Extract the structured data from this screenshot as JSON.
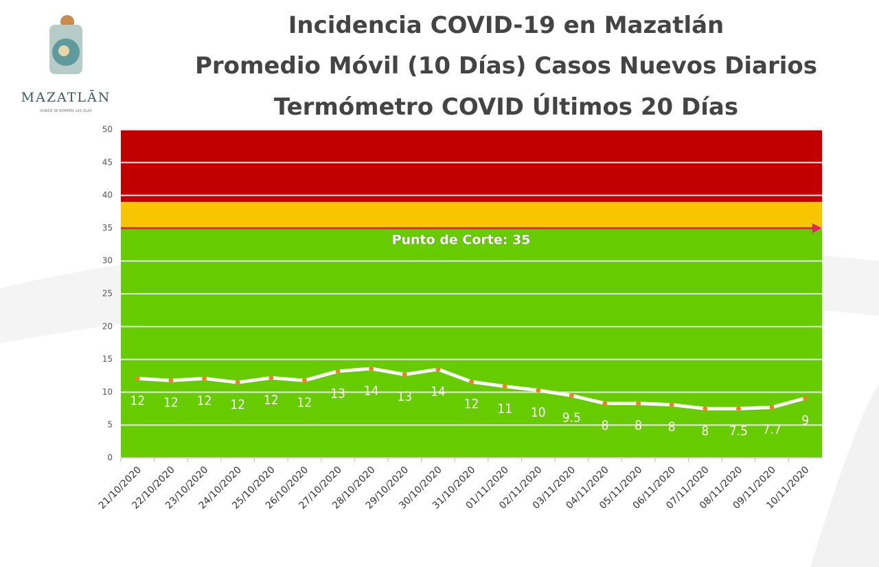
{
  "chart_data": {
    "type": "line",
    "logo_name": "MAZATLĀN",
    "logo_tagline": "DONDE SE ROMPEN LAS OLAS",
    "title_lines": [
      "Incidencia COVID-19 en Mazatlán",
      "Promedio Móvil (10 Días) Casos Nuevos Diarios",
      "Termómetro COVID Últimos 20 Días"
    ],
    "categories": [
      "21/10/2020",
      "22/10/2020",
      "23/10/2020",
      "24/10/2020",
      "25/10/2020",
      "26/10/2020",
      "27/10/2020",
      "28/10/2020",
      "29/10/2020",
      "30/10/2020",
      "31/10/2020",
      "01/11/2020",
      "02/11/2020",
      "03/11/2020",
      "04/11/2020",
      "05/11/2020",
      "06/11/2020",
      "07/11/2020",
      "08/11/2020",
      "09/11/2020",
      "10/11/2020"
    ],
    "values": [
      12.1,
      11.8,
      12.1,
      11.5,
      12.2,
      11.8,
      13.2,
      13.6,
      12.7,
      13.5,
      11.6,
      10.9,
      10.3,
      9.5,
      8.3,
      8.3,
      8.1,
      7.5,
      7.5,
      7.7,
      9.1
    ],
    "value_labels": [
      "12",
      "12",
      "12",
      "12",
      "12",
      "12",
      "13",
      "14",
      "13",
      "14",
      "12",
      "11",
      "10",
      "9.5",
      "8",
      "8",
      "8",
      "8",
      "7.5",
      "7.7",
      "9"
    ],
    "color": "#ffffff",
    "marker_color": "#e8822a",
    "ylim": [
      0,
      50
    ],
    "yticks": [
      0,
      5,
      10,
      15,
      20,
      25,
      30,
      35,
      40,
      45,
      50
    ],
    "grid": true,
    "bands": [
      {
        "from": 0,
        "to": 35,
        "color": "#66cc00"
      },
      {
        "from": 35,
        "to": 39,
        "color": "#f7c600"
      },
      {
        "from": 39,
        "to": 50,
        "color": "#c00000"
      }
    ],
    "cutoff": 35,
    "cutoff_color": "#e8206a",
    "cutoff_label": "Punto de Corte: 35"
  }
}
